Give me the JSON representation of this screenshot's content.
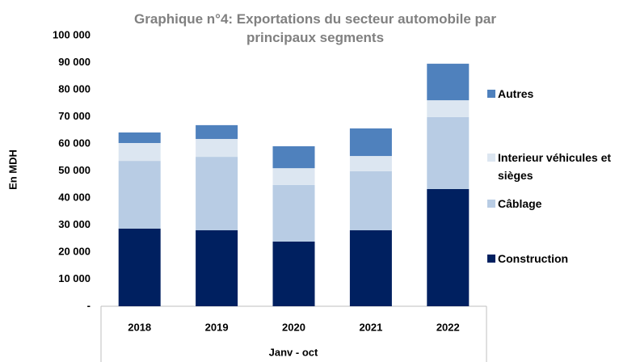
{
  "chart_data": {
    "type": "stacked_bar",
    "title": "Graphique n°4: Exportations du secteur automobile par principaux segments",
    "y_label": "En MDH",
    "x_label": "Janv - oct",
    "categories": [
      "2018",
      "2019",
      "2020",
      "2021",
      "2022"
    ],
    "series": [
      {
        "name": "Construction",
        "color": "#002060",
        "values": [
          28700,
          28100,
          23900,
          28100,
          43300
        ]
      },
      {
        "name": "Câblage",
        "color": "#b8cce4",
        "values": [
          25000,
          27100,
          20900,
          21800,
          26600
        ]
      },
      {
        "name": "Interieur véhicules et sièges",
        "color": "#dce6f1",
        "values": [
          6600,
          6600,
          6200,
          5600,
          6200
        ]
      },
      {
        "name": "Autres",
        "color": "#4f81bd",
        "values": [
          3900,
          5100,
          8100,
          10200,
          13500
        ]
      }
    ],
    "ylim": [
      0,
      100000
    ],
    "yticks": [
      {
        "value": 0,
        "label": "-"
      },
      {
        "value": 10000,
        "label": "10 000"
      },
      {
        "value": 20000,
        "label": "20 000"
      },
      {
        "value": 30000,
        "label": "30 000"
      },
      {
        "value": 40000,
        "label": "40 000"
      },
      {
        "value": 50000,
        "label": "50 000"
      },
      {
        "value": 60000,
        "label": "60 000"
      },
      {
        "value": 70000,
        "label": "70 000"
      },
      {
        "value": 80000,
        "label": "80 000"
      },
      {
        "value": 90000,
        "label": "90 000"
      },
      {
        "value": 100000,
        "label": "100 000"
      }
    ],
    "grid": false,
    "legend": "right"
  }
}
